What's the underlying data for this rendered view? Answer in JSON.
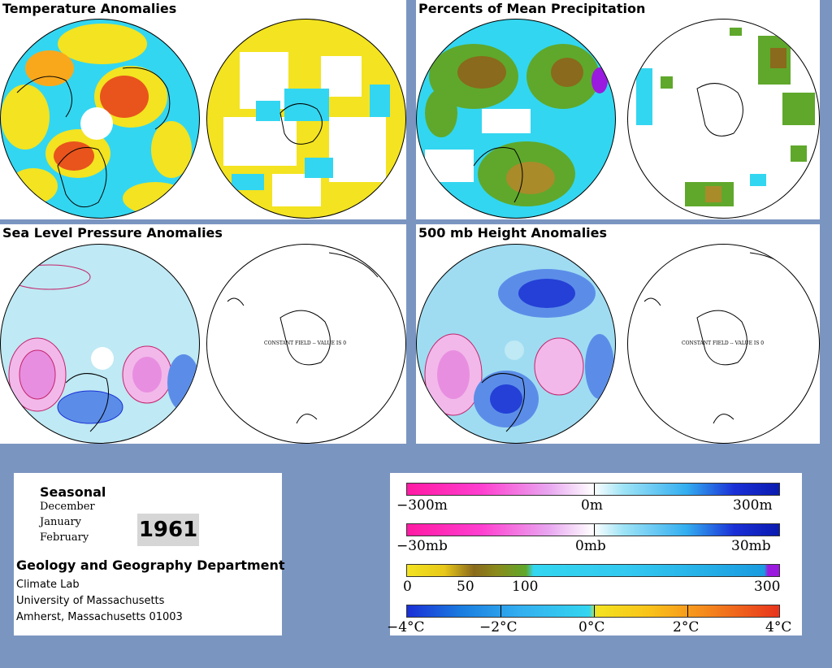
{
  "panels": {
    "temperature": {
      "title": "Temperature Anomalies"
    },
    "precipitation": {
      "title": "Percents of Mean Precipitation"
    },
    "slp": {
      "title": "Sea Level Pressure Anomalies"
    },
    "height500": {
      "title": "500 mb Height Anomalies"
    }
  },
  "constant_field_label": "CONSTANT FIELD -- VALUE IS 0",
  "info": {
    "period": "Seasonal",
    "months": [
      "December",
      "January",
      "February"
    ],
    "year": "1961",
    "department": "Geology and Geography Department",
    "address_lines": [
      "Climate Lab",
      "University of Massachusetts",
      "Amherst, Massachusetts 01003"
    ]
  },
  "legends": {
    "height": {
      "labels": [
        "−300m",
        "0m",
        "300m"
      ]
    },
    "pressure": {
      "labels": [
        "−30mb",
        "0mb",
        "30mb"
      ]
    },
    "precip": {
      "labels": [
        "0",
        "50",
        "100",
        "300"
      ]
    },
    "temp": {
      "labels": [
        "−4°C",
        "−2°C",
        "0°C",
        "2°C",
        "4°C"
      ]
    }
  },
  "colors": {
    "background": "#7b95c1",
    "warm": "#e8541c",
    "yellow": "#f3e321",
    "cyan": "#33d6f0",
    "magenta": "#ff1aa3",
    "blue": "#1a2fd6",
    "green": "#5fa82b",
    "brown": "#8a6a1c"
  }
}
